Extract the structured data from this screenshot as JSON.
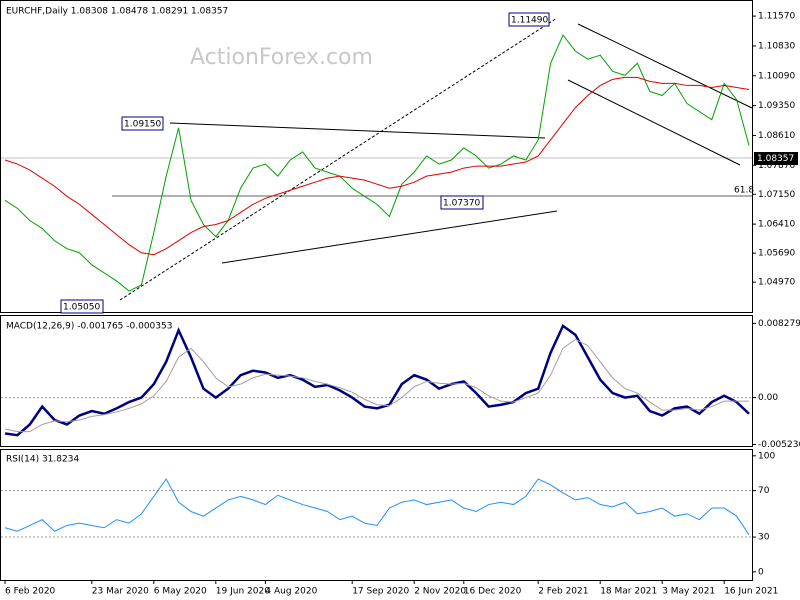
{
  "chart_data": [
    {
      "type": "line",
      "title": "EURCHF,Daily 1.08308 1.08478 1.08291 1.08357",
      "watermark": "ActionForex.com",
      "last_price": "1.08357",
      "annotations": [
        "1.11490",
        "1.09150",
        "1.05050",
        "1.07370",
        "61.8"
      ],
      "categories": [
        "6 Feb 2020",
        null,
        null,
        null,
        null,
        null,
        null,
        "23 Mar 2020",
        null,
        null,
        null,
        null,
        "6 May 2020",
        null,
        null,
        null,
        null,
        "19 Jun 2020",
        null,
        null,
        null,
        "4 Aug 2020",
        null,
        null,
        null,
        null,
        null,
        null,
        "17 Sep 2020",
        null,
        null,
        null,
        null,
        "2 Nov 2020",
        null,
        null,
        null,
        "16 Dec 2020",
        null,
        null,
        null,
        null,
        null,
        "2 Feb 2021",
        null,
        null,
        null,
        null,
        "18 Mar 2021",
        null,
        null,
        null,
        null,
        "3 May 2021",
        null,
        null,
        null,
        null,
        "16 Jun 2021",
        null,
        null
      ],
      "series": [
        {
          "color": "#00a000",
          "values": [
            1.07,
            1.068,
            1.065,
            1.063,
            1.06,
            1.058,
            1.057,
            1.054,
            1.052,
            1.05,
            1.0475,
            1.049,
            1.062,
            1.076,
            1.088,
            1.07,
            1.064,
            1.061,
            1.065,
            1.073,
            1.078,
            1.079,
            1.076,
            1.08,
            1.082,
            1.078,
            1.077,
            1.076,
            1.073,
            1.071,
            1.069,
            1.066,
            1.074,
            1.077,
            1.081,
            1.079,
            1.08,
            1.083,
            1.081,
            1.078,
            1.079,
            1.081,
            1.08,
            1.085,
            1.104,
            1.111,
            1.107,
            1.105,
            1.106,
            1.102,
            1.101,
            1.104,
            1.097,
            1.096,
            1.099,
            1.094,
            1.092,
            1.09,
            1.099,
            1.095,
            1.0836
          ]
        },
        {
          "color": "#e00000",
          "values": [
            1.08,
            1.079,
            1.0775,
            1.0755,
            1.0735,
            1.071,
            1.069,
            1.0665,
            1.064,
            1.0615,
            1.059,
            1.057,
            1.0565,
            1.058,
            1.06,
            1.062,
            1.0635,
            1.064,
            1.065,
            1.067,
            1.069,
            1.0705,
            1.0715,
            1.0725,
            1.0735,
            1.0745,
            1.0755,
            1.076,
            1.0755,
            1.075,
            1.074,
            1.073,
            1.0735,
            1.0745,
            1.076,
            1.0765,
            1.077,
            1.078,
            1.0785,
            1.0785,
            1.0785,
            1.079,
            1.0795,
            1.081,
            1.085,
            1.089,
            1.093,
            1.096,
            1.0985,
            1.1,
            1.1005,
            1.1005,
            1.0995,
            1.099,
            1.099,
            1.0985,
            1.0985,
            1.098,
            1.0985,
            1.098,
            1.0975
          ]
        }
      ],
      "ylim": [
        1.0423,
        1.1187
      ],
      "yticks": [
        {
          "value": 1.0497,
          "label": "1.04970"
        },
        {
          "value": 1.0569,
          "label": "1.05690"
        },
        {
          "value": 1.0641,
          "label": "1.06410"
        },
        {
          "value": 1.0715,
          "label": "1.07150"
        },
        {
          "value": 1.0787,
          "label": "1.07870"
        },
        {
          "value": 1.0861,
          "label": "1.08610"
        },
        {
          "value": 1.0935,
          "label": "1.09350"
        },
        {
          "value": 1.1009,
          "label": "1.10090"
        },
        {
          "value": 1.1083,
          "label": "1.10830"
        },
        {
          "value": 1.1157,
          "label": "1.11570"
        }
      ]
    },
    {
      "type": "line",
      "title": "MACD(12,26,9) -0.001765 -0.000353",
      "series": [
        {
          "color": "#000080",
          "values": [
            -0.004,
            -0.0042,
            -0.003,
            -0.001,
            -0.0025,
            -0.003,
            -0.002,
            -0.0015,
            -0.0018,
            -0.0012,
            -0.0005,
            0.0,
            0.0015,
            0.004,
            0.0075,
            0.0045,
            0.001,
            0.0,
            0.001,
            0.0025,
            0.003,
            0.0028,
            0.0022,
            0.0025,
            0.002,
            0.0012,
            0.0014,
            0.0008,
            0.0,
            -0.001,
            -0.0012,
            -0.0008,
            0.0015,
            0.0025,
            0.002,
            0.001,
            0.0015,
            0.0018,
            0.0005,
            -0.001,
            -0.0008,
            -0.0005,
            0.0005,
            0.001,
            0.005,
            0.008,
            0.007,
            0.0045,
            0.002,
            0.0005,
            0.0,
            0.0002,
            -0.0015,
            -0.002,
            -0.0012,
            -0.001,
            -0.0018,
            -0.0005,
            0.0002,
            -0.0005,
            -0.0018
          ]
        },
        {
          "color": "#a0a0a0",
          "values": [
            -0.0035,
            -0.0038,
            -0.0038,
            -0.003,
            -0.0026,
            -0.0027,
            -0.0025,
            -0.0021,
            -0.0019,
            -0.0016,
            -0.0012,
            -0.0007,
            0.0002,
            0.0018,
            0.0045,
            0.0055,
            0.004,
            0.0022,
            0.0012,
            0.0015,
            0.0022,
            0.0026,
            0.0025,
            0.0024,
            0.0022,
            0.0018,
            0.0015,
            0.0011,
            0.0006,
            -0.0002,
            -0.0008,
            -0.0009,
            0.0,
            0.0012,
            0.0018,
            0.0016,
            0.0015,
            0.0016,
            0.0011,
            0.0002,
            -0.0004,
            -0.0005,
            0.0,
            0.0005,
            0.0025,
            0.0055,
            0.0065,
            0.0058,
            0.004,
            0.0022,
            0.001,
            0.0005,
            -0.0005,
            -0.0014,
            -0.0014,
            -0.0012,
            -0.0014,
            -0.001,
            -0.0004,
            -0.0004,
            -0.0004
          ]
        }
      ],
      "ylim": [
        -0.0054,
        0.0091
      ],
      "yticks": [
        -0.005236,
        {
          "value": 0,
          "label": "0.00"
        },
        0.008279
      ],
      "levels": [
        0
      ]
    },
    {
      "type": "line",
      "title": "RSI(14) 31.8234",
      "series": [
        {
          "color": "#1e90ff",
          "values": [
            38,
            35,
            40,
            45,
            35,
            40,
            42,
            40,
            38,
            45,
            42,
            50,
            65,
            80,
            60,
            52,
            48,
            55,
            62,
            65,
            62,
            58,
            66,
            62,
            58,
            55,
            52,
            45,
            48,
            42,
            40,
            55,
            60,
            62,
            58,
            60,
            62,
            55,
            52,
            58,
            60,
            58,
            65,
            80,
            75,
            68,
            62,
            64,
            58,
            56,
            60,
            50,
            52,
            55,
            48,
            50,
            45,
            55,
            55,
            48,
            32
          ]
        }
      ],
      "ylim": [
        -7,
        105
      ],
      "yticks": [
        0,
        30,
        70,
        100
      ],
      "levels": [
        30,
        70
      ]
    }
  ]
}
